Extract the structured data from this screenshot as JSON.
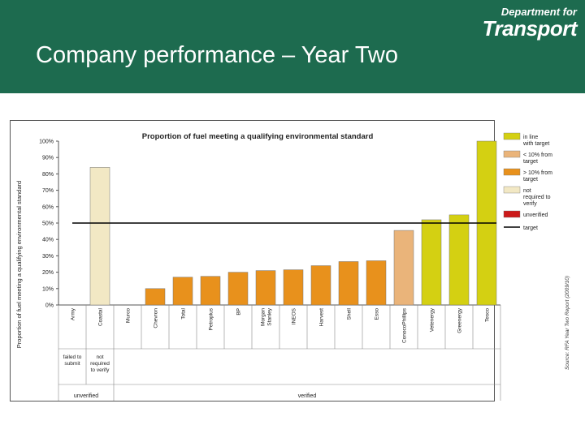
{
  "slide": {
    "title": "Company performance – Year Two",
    "logo_line1": "Department for",
    "logo_line2": "Transport"
  },
  "chart_data": {
    "type": "bar",
    "title": "Proportion of fuel meeting a qualifying environmental standard",
    "ylabel": "Proportion of fuel meeting a qualifying environmental standard",
    "ylim": [
      0,
      100
    ],
    "yticks": [
      "0%",
      "10%",
      "20%",
      "30%",
      "40%",
      "50%",
      "60%",
      "70%",
      "80%",
      "90%",
      "100%"
    ],
    "categories": [
      "Army",
      "Coastal",
      "Murco",
      "Chevron",
      "Total",
      "Petroplus",
      "BP",
      "Morgan Stanley",
      "INEOS",
      "Harvest",
      "Shell",
      "Esso",
      "ConocoPhillips",
      "Vetenergy",
      "Greenergy",
      "Tesco"
    ],
    "values": [
      0,
      84,
      0,
      10,
      17,
      17.5,
      20,
      21,
      21.5,
      24,
      26.5,
      27,
      45.5,
      52,
      55,
      100
    ],
    "status": [
      "unverified",
      "unverified",
      "verified",
      "verified",
      "verified",
      "verified",
      "verified",
      "verified",
      "verified",
      "verified",
      "verified",
      "verified",
      "verified",
      "verified",
      "verified",
      "verified"
    ],
    "target": 50,
    "legend": [
      {
        "label": "in line with target",
        "color": "#d4d012"
      },
      {
        "label": "< 10% from target",
        "color": "#eab47a"
      },
      {
        "label": "> 10% from target",
        "color": "#e8911c"
      },
      {
        "label": "not required to verify",
        "color": "#f2e8c4"
      },
      {
        "label": "unverified",
        "color": "#cc1a1a"
      },
      {
        "label": "target",
        "color": "#000000"
      }
    ],
    "bar_colors": [
      "#f2e8c4",
      "#f2e8c4",
      "#e8911c",
      "#e8911c",
      "#e8911c",
      "#e8911c",
      "#e8911c",
      "#e8911c",
      "#e8911c",
      "#e8911c",
      "#e8911c",
      "#e8911c",
      "#eab47a",
      "#d4d012",
      "#d4d012",
      "#d4d012"
    ],
    "groups": [
      {
        "sub": [
          "failed to submit",
          "not required to verify"
        ],
        "label": "unverified"
      },
      {
        "label": "verified"
      }
    ],
    "source_note": "Source: RFA Year Two Report (2009/10)",
    "legend_position": "right"
  }
}
